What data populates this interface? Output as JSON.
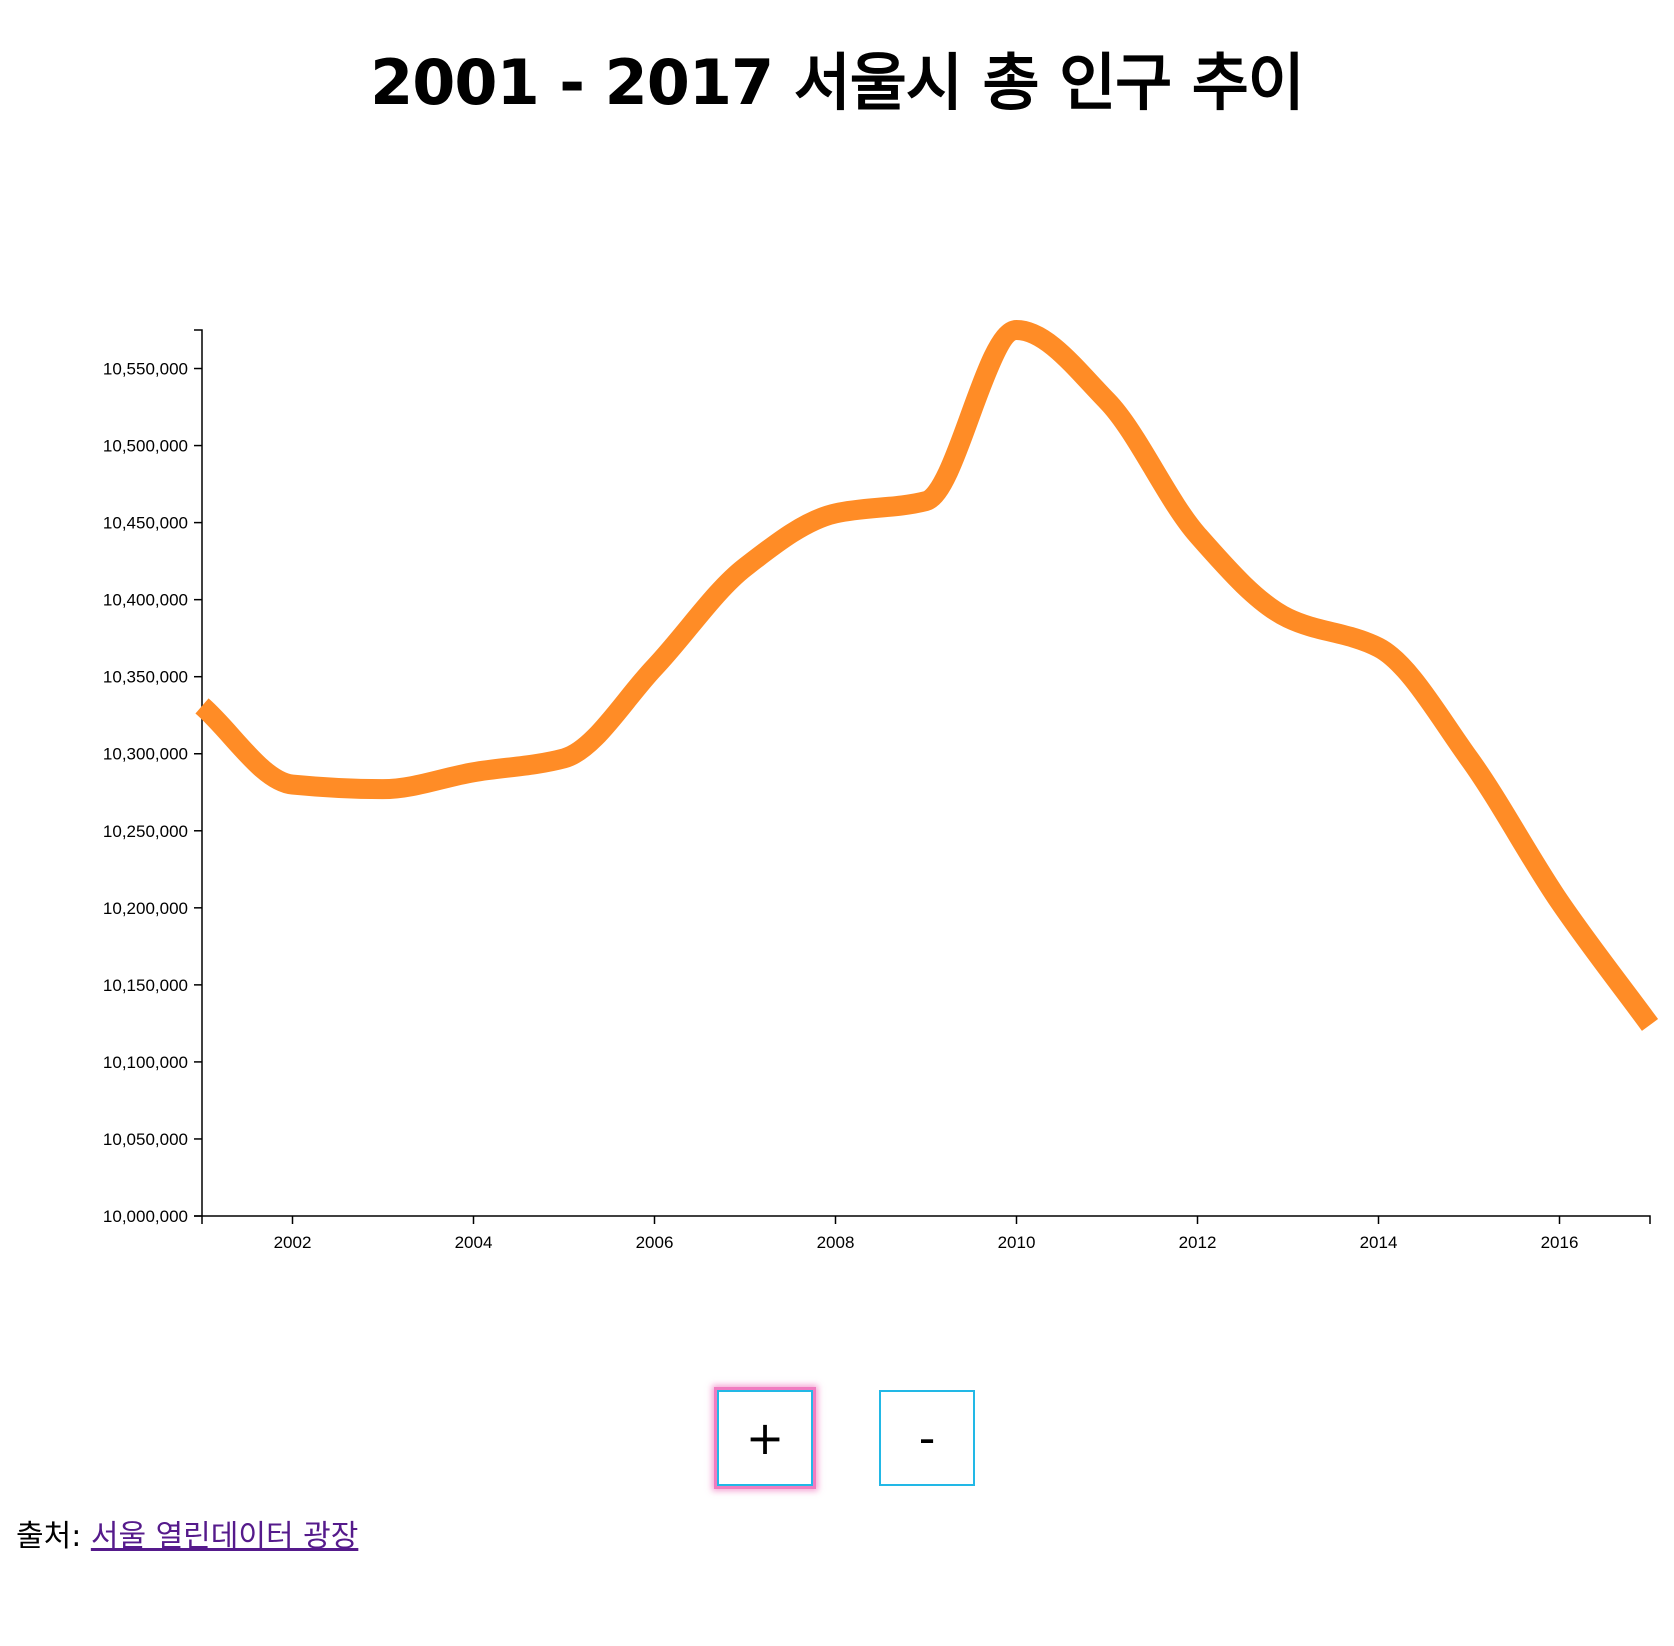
{
  "title": "2001 - 2017 서울시 총 인구 추이",
  "chart_data": {
    "type": "line",
    "title": "2001 - 2017 서울시 총 인구 추이",
    "xlabel": "",
    "ylabel": "",
    "x": [
      2001,
      2002,
      2003,
      2004,
      2005,
      2006,
      2007,
      2008,
      2009,
      2010,
      2011,
      2012,
      2013,
      2014,
      2015,
      2016,
      2017
    ],
    "series": [
      {
        "values": [
          10331000,
          10280000,
          10277000,
          10288000,
          10297000,
          10356000,
          10421000,
          10456000,
          10464000,
          10575000,
          10529000,
          10442000,
          10388000,
          10369000,
          10297000,
          10204000,
          10124000
        ],
        "color": "#ff8c26"
      }
    ],
    "xlim": [
      2001,
      2017
    ],
    "ylim": [
      10000000,
      10575000
    ],
    "x_ticks": [
      2002,
      2004,
      2006,
      2008,
      2010,
      2012,
      2014,
      2016
    ],
    "y_ticks": [
      10000000,
      10050000,
      10100000,
      10150000,
      10200000,
      10250000,
      10300000,
      10350000,
      10400000,
      10450000,
      10500000,
      10550000
    ],
    "x_tick_labels": [
      "2002",
      "2004",
      "2006",
      "2008",
      "2010",
      "2012",
      "2014",
      "2016"
    ],
    "y_tick_labels": [
      "10,000,000",
      "10,050,000",
      "10,100,000",
      "10,150,000",
      "10,200,000",
      "10,250,000",
      "10,300,000",
      "10,350,000",
      "10,400,000",
      "10,450,000",
      "10,500,000",
      "10,550,000"
    ],
    "grid": false,
    "curve": "smooth"
  },
  "controls": {
    "zoom_in_label": "+",
    "zoom_out_label": "-"
  },
  "source": {
    "prefix": "출처: ",
    "link_text": "서울 열린데이터 광장"
  }
}
